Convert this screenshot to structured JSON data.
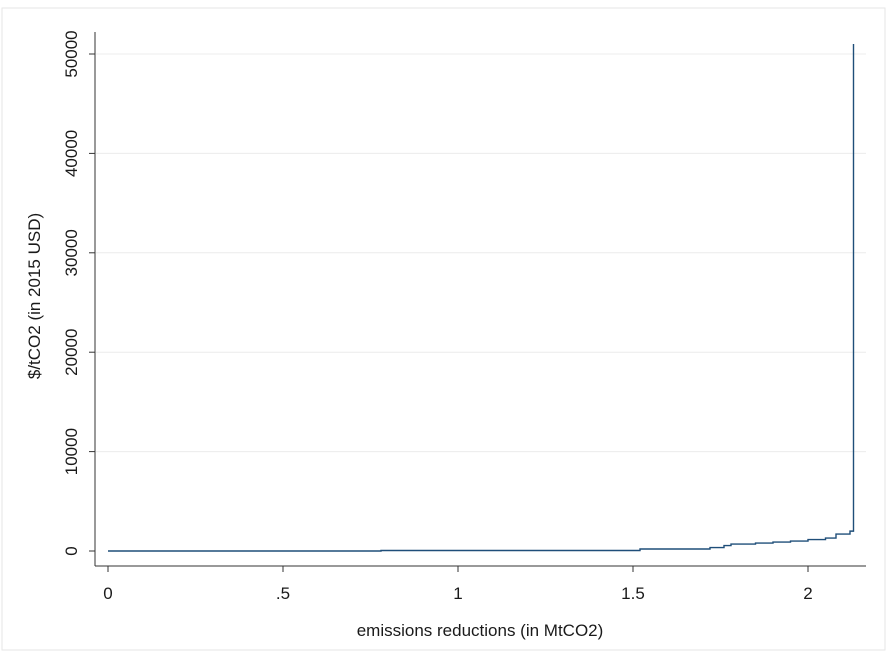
{
  "chart_data": {
    "type": "line",
    "title": "",
    "xlabel": "emissions reductions (in MtCO2)",
    "ylabel": "$/tCO2 (in 2015 USD)",
    "xlim": [
      0,
      2.13
    ],
    "ylim": [
      0,
      51000
    ],
    "x_ticks": [
      0,
      0.5,
      1,
      1.5,
      2
    ],
    "x_tick_labels": [
      "0",
      ".5",
      "1",
      "1.5",
      "2"
    ],
    "y_ticks": [
      0,
      10000,
      20000,
      30000,
      40000,
      50000
    ],
    "y_tick_labels": [
      "0",
      "10000",
      "20000",
      "30000",
      "40000",
      "50000"
    ],
    "grid": "horizontal",
    "line_color": "#1f4e79",
    "series": [
      {
        "step": true,
        "x": [
          0,
          0.75,
          0.78,
          1.5,
          1.52,
          1.7,
          1.72,
          1.76,
          1.78,
          1.85,
          1.9,
          1.95,
          2.0,
          2.05,
          2.08,
          2.12,
          2.13,
          2.13
        ],
        "y": [
          0,
          0,
          50,
          50,
          200,
          200,
          350,
          550,
          700,
          800,
          900,
          1000,
          1150,
          1300,
          1700,
          2000,
          2000,
          51000
        ]
      }
    ]
  }
}
